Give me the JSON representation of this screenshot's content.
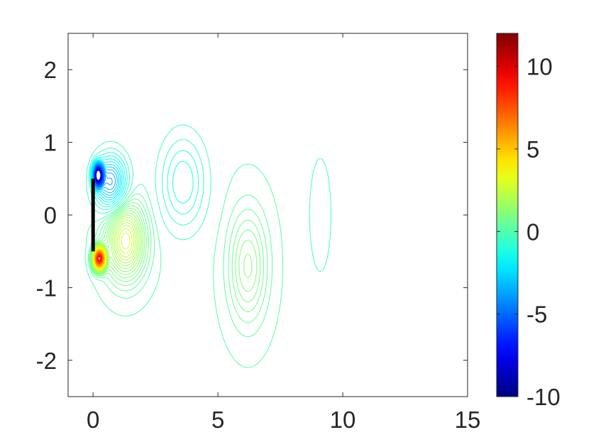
{
  "chart_data": {
    "type": "contour",
    "title": "",
    "xlabel": "",
    "ylabel": "",
    "xlim": [
      -1,
      15
    ],
    "ylim": [
      -2.5,
      2.5
    ],
    "x_ticks": [
      0,
      5,
      10,
      15
    ],
    "x_tick_labels": [
      "0",
      "5",
      "10",
      "15"
    ],
    "y_ticks": [
      2,
      1,
      0,
      -1,
      -2
    ],
    "y_tick_labels": [
      "2",
      "1",
      "0",
      "-1",
      "-2"
    ],
    "grid": false,
    "colormap": "jet",
    "colorbar": {
      "range": [
        -10,
        12
      ],
      "ticks": [
        10,
        5,
        0,
        -5,
        -10
      ],
      "tick_labels": [
        "10",
        "5",
        "0",
        "-5",
        "-10"
      ]
    },
    "plate": {
      "x": 0,
      "y_from": -0.5,
      "y_to": 0.5,
      "color": "#000000"
    },
    "vortices": [
      {
        "x": 0.2,
        "y": 0.55,
        "sx": 0.18,
        "sy": 0.14,
        "value": -10
      },
      {
        "x": 0.25,
        "y": -0.6,
        "sx": 0.22,
        "sy": 0.14,
        "value": 9.5
      },
      {
        "x": 1.3,
        "y": -0.35,
        "sx": 0.75,
        "sy": 0.5,
        "value": 3.0
      },
      {
        "x": 0.7,
        "y": 0.45,
        "sx": 0.6,
        "sy": 0.35,
        "value": -4.0
      },
      {
        "x": 3.6,
        "y": 0.45,
        "sx": 0.85,
        "sy": 0.6,
        "value": -1.7
      },
      {
        "x": 6.2,
        "y": -0.7,
        "sx": 0.75,
        "sy": 0.75,
        "value": 1.3
      },
      {
        "x": 9.1,
        "y": 0.0,
        "sx": 0.55,
        "sy": 1.0,
        "value": -0.55
      }
    ],
    "contour_levels": {
      "negative": {
        "start": -9.4,
        "step": 0.35,
        "end": -0.04
      },
      "positive": {
        "start": 0.04,
        "step": 0.2,
        "end": 9.4
      },
      "background": 0
    },
    "colors": {
      "axis": "#262626",
      "background": "#ffffff"
    }
  }
}
